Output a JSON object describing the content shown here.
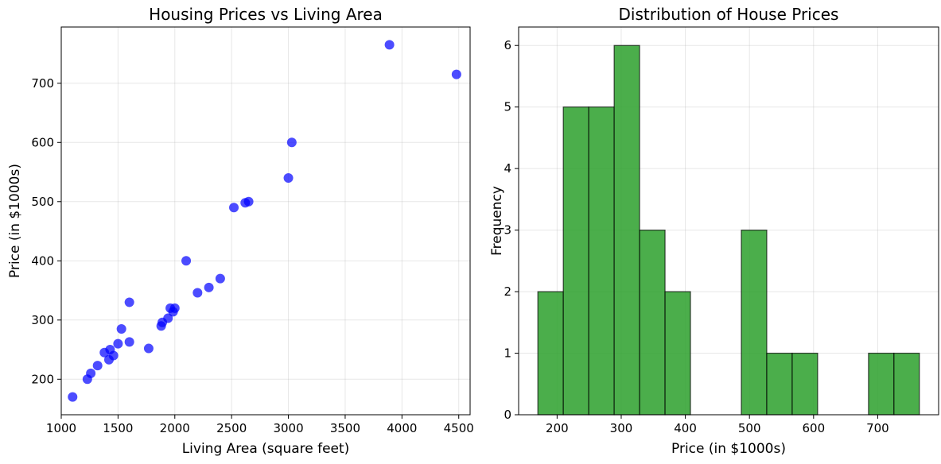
{
  "chart_data": [
    {
      "type": "scatter",
      "title": "Housing Prices vs Living Area",
      "xlabel": "Living Area (square feet)",
      "ylabel": "Price (in $1000s)",
      "xlim": [
        1000,
        4600
      ],
      "ylim": [
        140,
        795
      ],
      "xticks": [
        1000,
        1500,
        2000,
        2500,
        3000,
        3500,
        4000,
        4500
      ],
      "yticks": [
        200,
        300,
        400,
        500,
        600,
        700
      ],
      "grid": true,
      "color": "#0000ff",
      "points": [
        {
          "x": 1100,
          "y": 170
        },
        {
          "x": 1230,
          "y": 200
        },
        {
          "x": 1260,
          "y": 210
        },
        {
          "x": 1320,
          "y": 223
        },
        {
          "x": 1380,
          "y": 245
        },
        {
          "x": 1420,
          "y": 233
        },
        {
          "x": 1430,
          "y": 250
        },
        {
          "x": 1460,
          "y": 240
        },
        {
          "x": 1500,
          "y": 260
        },
        {
          "x": 1530,
          "y": 285
        },
        {
          "x": 1600,
          "y": 330
        },
        {
          "x": 1600,
          "y": 263
        },
        {
          "x": 1770,
          "y": 252
        },
        {
          "x": 1880,
          "y": 290
        },
        {
          "x": 1890,
          "y": 296
        },
        {
          "x": 1940,
          "y": 303
        },
        {
          "x": 1960,
          "y": 320
        },
        {
          "x": 1985,
          "y": 314
        },
        {
          "x": 2000,
          "y": 320
        },
        {
          "x": 2100,
          "y": 400
        },
        {
          "x": 2200,
          "y": 346
        },
        {
          "x": 2300,
          "y": 355
        },
        {
          "x": 2400,
          "y": 370
        },
        {
          "x": 2520,
          "y": 490
        },
        {
          "x": 2620,
          "y": 498
        },
        {
          "x": 2650,
          "y": 500
        },
        {
          "x": 3000,
          "y": 540
        },
        {
          "x": 3030,
          "y": 600
        },
        {
          "x": 3890,
          "y": 765
        },
        {
          "x": 4480,
          "y": 715
        }
      ]
    },
    {
      "type": "bar",
      "subtype": "histogram",
      "title": "Distribution of House Prices",
      "xlabel": "Price (in $1000s)",
      "ylabel": "Frequency",
      "xlim": [
        140,
        795
      ],
      "ylim": [
        0,
        6.3
      ],
      "xticks": [
        200,
        300,
        400,
        500,
        600,
        700
      ],
      "yticks": [
        0,
        1,
        2,
        3,
        4,
        5,
        6
      ],
      "grid": true,
      "color": "#2ca02c",
      "edgecolor": "#000000",
      "bins": [
        {
          "start": 170,
          "end": 209.67,
          "count": 2
        },
        {
          "start": 209.67,
          "end": 249.33,
          "count": 5
        },
        {
          "start": 249.33,
          "end": 289,
          "count": 5
        },
        {
          "start": 289,
          "end": 328.67,
          "count": 6
        },
        {
          "start": 328.67,
          "end": 368.33,
          "count": 3
        },
        {
          "start": 368.33,
          "end": 408,
          "count": 2
        },
        {
          "start": 408,
          "end": 447.67,
          "count": 0
        },
        {
          "start": 447.67,
          "end": 487.33,
          "count": 0
        },
        {
          "start": 487.33,
          "end": 527,
          "count": 3
        },
        {
          "start": 527,
          "end": 566.67,
          "count": 1
        },
        {
          "start": 566.67,
          "end": 606.33,
          "count": 1
        },
        {
          "start": 606.33,
          "end": 646,
          "count": 0
        },
        {
          "start": 646,
          "end": 685.67,
          "count": 0
        },
        {
          "start": 685.67,
          "end": 725.33,
          "count": 1
        },
        {
          "start": 725.33,
          "end": 765,
          "count": 1
        }
      ]
    }
  ]
}
